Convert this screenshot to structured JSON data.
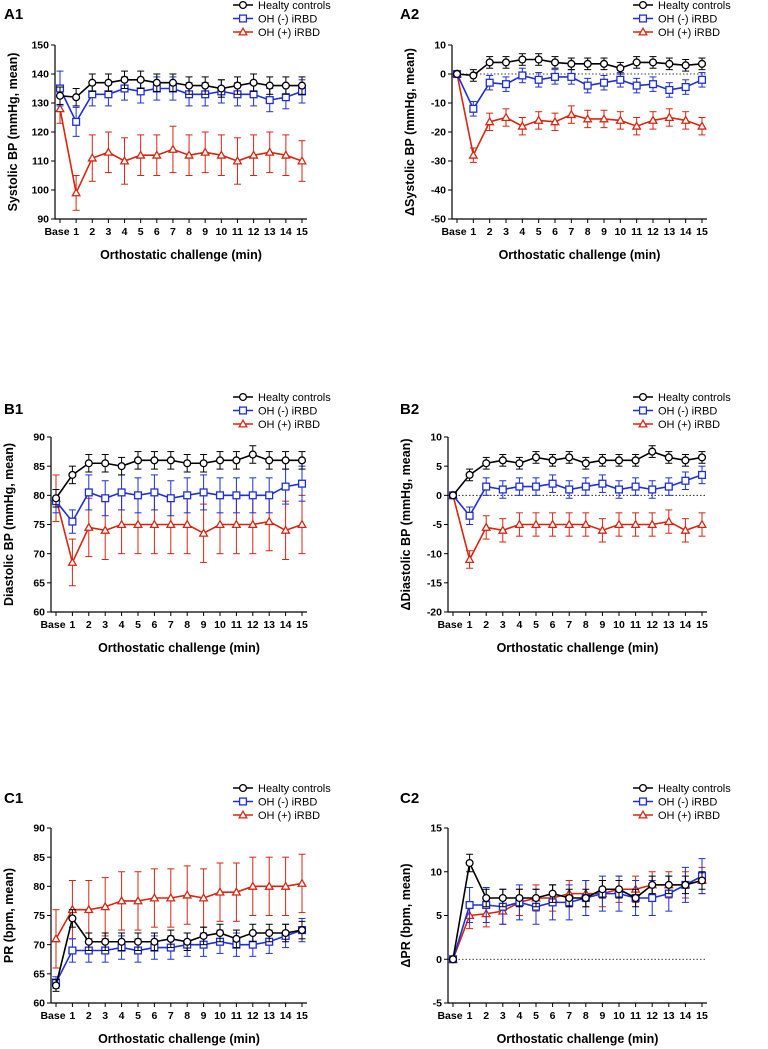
{
  "figure": {
    "legend_entries": [
      "Healty controls",
      "OH (-) iRBD",
      "OH (+) iRBD"
    ],
    "series_colors": [
      "#000000",
      "#1f2fd6",
      "#d62612"
    ],
    "marker_names": [
      "circle",
      "square",
      "triangle"
    ]
  },
  "chart_data": [
    {
      "id": "A1",
      "type": "line",
      "panel_label": "A1",
      "xlabel": "Orthostatic challenge (min)",
      "ylabel": "Systolic BP (mmHg, mean)",
      "categories": [
        "Base",
        "1",
        "2",
        "3",
        "4",
        "5",
        "6",
        "7",
        "8",
        "9",
        "10",
        "11",
        "12",
        "13",
        "14",
        "15"
      ],
      "ylim": [
        90,
        150
      ],
      "yticks": [
        90,
        100,
        110,
        120,
        130,
        140,
        150
      ],
      "zero_line": false,
      "legend_position": "top-right",
      "series": [
        {
          "name": "Healty controls",
          "values": [
            132.5,
            132,
            137,
            137,
            138,
            138,
            137,
            137,
            136,
            136,
            135,
            136,
            137,
            136,
            136,
            136
          ],
          "errors": [
            3,
            3,
            3,
            3,
            3,
            3,
            3,
            3,
            3,
            3,
            3,
            3,
            3,
            3,
            3,
            3
          ]
        },
        {
          "name": "OH (-) iRBD",
          "values": [
            135,
            123.5,
            133,
            133,
            135,
            134,
            135,
            135,
            133,
            133,
            134,
            133,
            133,
            131,
            132,
            134
          ],
          "errors": [
            6,
            5,
            4,
            4,
            4,
            4,
            4,
            4,
            4,
            4,
            4,
            4,
            4,
            4,
            4,
            4
          ]
        },
        {
          "name": "OH (+) iRBD",
          "values": [
            128,
            99,
            111,
            113,
            110,
            112,
            112,
            114,
            112,
            113,
            112,
            110,
            112,
            113,
            112,
            110
          ],
          "errors": [
            5,
            6,
            8,
            7,
            8,
            7,
            7,
            8,
            7,
            7,
            7,
            8,
            7,
            7,
            7,
            7
          ]
        }
      ]
    },
    {
      "id": "A2",
      "type": "line",
      "panel_label": "A2",
      "xlabel": "Orthostatic challenge (min)",
      "ylabel": "ΔSystolic BP (mmHg, mean)",
      "categories": [
        "Base",
        "1",
        "2",
        "3",
        "4",
        "5",
        "6",
        "7",
        "8",
        "9",
        "10",
        "11",
        "12",
        "13",
        "14",
        "15"
      ],
      "ylim": [
        -50,
        10
      ],
      "yticks": [
        -50,
        -40,
        -30,
        -20,
        -10,
        0,
        10
      ],
      "zero_line": true,
      "legend_position": "top-right",
      "series": [
        {
          "name": "Healty controls",
          "values": [
            0,
            -0.5,
            4,
            4,
            5,
            5,
            4,
            3.5,
            3.5,
            3.5,
            2,
            4,
            4,
            3.5,
            3,
            3.5
          ],
          "errors": [
            0,
            2,
            2,
            2,
            2,
            2,
            2,
            2,
            2,
            2,
            2,
            2,
            2,
            2,
            2,
            2
          ]
        },
        {
          "name": "OH (-) iRBD",
          "values": [
            0,
            -12,
            -3,
            -3.5,
            -0.5,
            -2,
            -1,
            -1,
            -4,
            -3,
            -2,
            -4,
            -3.5,
            -5.5,
            -4.5,
            -2
          ],
          "errors": [
            0,
            2.5,
            2.5,
            2.5,
            2.5,
            2.5,
            2.5,
            2.5,
            2.5,
            2.5,
            2.5,
            2.5,
            2.5,
            2.5,
            2.5,
            2.5
          ]
        },
        {
          "name": "OH (+) iRBD",
          "values": [
            0,
            -28,
            -16.5,
            -15,
            -18,
            -16,
            -16.5,
            -14,
            -15.5,
            -15.5,
            -16,
            -18,
            -16,
            -15,
            -16,
            -18
          ],
          "errors": [
            0,
            2.5,
            3,
            3,
            3,
            3,
            3,
            3,
            3,
            3,
            3,
            3,
            3,
            3,
            3,
            3
          ]
        }
      ]
    },
    {
      "id": "B1",
      "type": "line",
      "panel_label": "B1",
      "xlabel": "Orthostatic challenge (min)",
      "ylabel": "Diastolic BP (mmHg, mean)",
      "categories": [
        "Base",
        "1",
        "2",
        "3",
        "4",
        "5",
        "6",
        "7",
        "8",
        "9",
        "10",
        "11",
        "12",
        "13",
        "14",
        "15"
      ],
      "ylim": [
        60,
        90
      ],
      "yticks": [
        60,
        65,
        70,
        75,
        80,
        85,
        90
      ],
      "zero_line": false,
      "legend_position": "top-right",
      "series": [
        {
          "name": "Healty controls",
          "values": [
            79.5,
            83.5,
            85.5,
            85.5,
            85,
            86,
            86,
            86,
            85.5,
            85.5,
            86,
            86,
            87,
            86,
            86,
            86
          ],
          "errors": [
            1.5,
            1.5,
            1.5,
            1.5,
            1.5,
            1.5,
            1.5,
            1.5,
            1.5,
            1.5,
            1.5,
            1.5,
            1.5,
            1.5,
            1.5,
            1.5
          ]
        },
        {
          "name": "OH (-) iRBD",
          "values": [
            79,
            75.5,
            80.5,
            79.5,
            80.5,
            80,
            80.5,
            79.5,
            80,
            80.5,
            80,
            80,
            80,
            80,
            81.5,
            82
          ],
          "errors": [
            2,
            2,
            3,
            3,
            3,
            3,
            3,
            3,
            3,
            3,
            3,
            3,
            3,
            3,
            3,
            3
          ]
        },
        {
          "name": "OH (+) iRBD",
          "values": [
            79.5,
            68.5,
            74.5,
            74,
            75,
            75,
            75,
            75,
            75,
            73.5,
            75,
            75,
            75,
            75.5,
            74,
            75
          ],
          "errors": [
            4,
            4,
            5,
            5,
            5,
            5,
            5,
            5,
            5,
            5,
            5,
            5,
            5,
            5,
            5,
            5
          ]
        }
      ]
    },
    {
      "id": "B2",
      "type": "line",
      "panel_label": "B2",
      "xlabel": "Orthostatic challenge (min)",
      "ylabel": "ΔDiastolic BP (mmHg, mean)",
      "categories": [
        "Base",
        "1",
        "2",
        "3",
        "4",
        "5",
        "6",
        "7",
        "8",
        "9",
        "10",
        "11",
        "12",
        "13",
        "14",
        "15"
      ],
      "ylim": [
        -20,
        10
      ],
      "yticks": [
        -20,
        -15,
        -10,
        -5,
        0,
        5,
        10
      ],
      "zero_line": true,
      "legend_position": "top-right",
      "series": [
        {
          "name": "Healty controls",
          "values": [
            0,
            3.5,
            5.5,
            6,
            5.5,
            6.5,
            6,
            6.5,
            5.5,
            6,
            6,
            6,
            7.5,
            6.5,
            6,
            6.5
          ],
          "errors": [
            0,
            1,
            1,
            1,
            1,
            1,
            1,
            1,
            1,
            1,
            1,
            1,
            1,
            1,
            1,
            1
          ]
        },
        {
          "name": "OH (-) iRBD",
          "values": [
            0,
            -3.5,
            1.5,
            1,
            1.5,
            1.5,
            2,
            1,
            1.5,
            2,
            1,
            1.5,
            1,
            1.5,
            2.5,
            3.5
          ],
          "errors": [
            0,
            1.5,
            1.5,
            1.5,
            1.5,
            1.5,
            1.5,
            1.5,
            1.5,
            1.5,
            1.5,
            1.5,
            1.5,
            1.5,
            1.5,
            1.5
          ]
        },
        {
          "name": "OH (+) iRBD",
          "values": [
            0,
            -11,
            -5.5,
            -6,
            -5,
            -5,
            -5,
            -5,
            -5,
            -6,
            -5,
            -5,
            -5,
            -4.5,
            -6,
            -5
          ],
          "errors": [
            0,
            1.5,
            2,
            2,
            2,
            2,
            2,
            2,
            2,
            2,
            2,
            2,
            2,
            2,
            2,
            2
          ]
        }
      ]
    },
    {
      "id": "C1",
      "type": "line",
      "panel_label": "C1",
      "xlabel": "Orthostatic challenge (min)",
      "ylabel": "PR (bpm, mean)",
      "categories": [
        "Base",
        "1",
        "2",
        "3",
        "4",
        "5",
        "6",
        "7",
        "8",
        "9",
        "10",
        "11",
        "12",
        "13",
        "14",
        "15"
      ],
      "ylim": [
        60,
        90
      ],
      "yticks": [
        60,
        65,
        70,
        75,
        80,
        85,
        90
      ],
      "zero_line": false,
      "legend_position": "top-right",
      "series": [
        {
          "name": "Healty controls",
          "values": [
            63,
            74.5,
            70.5,
            70.5,
            70.5,
            70.5,
            70.5,
            71,
            70.5,
            71.5,
            72,
            71,
            72,
            72,
            72,
            72.5
          ],
          "errors": [
            1,
            1.5,
            1.5,
            1.5,
            1.5,
            1.5,
            1.5,
            1.5,
            1.5,
            1.5,
            1.5,
            1.5,
            1.5,
            1.5,
            1.5,
            1.5
          ]
        },
        {
          "name": "OH (-) iRBD",
          "values": [
            63.5,
            69,
            69,
            69,
            69.5,
            69,
            69.5,
            69.5,
            70,
            70,
            70.5,
            70,
            70,
            70.5,
            71.5,
            72.5
          ],
          "errors": [
            1,
            2,
            2,
            2,
            2,
            2,
            2,
            2,
            2,
            2,
            2,
            2,
            2,
            2,
            2,
            2
          ]
        },
        {
          "name": "OH (+) iRBD",
          "values": [
            71,
            76,
            76,
            76.5,
            77.5,
            77.5,
            78,
            78,
            78.5,
            78,
            79,
            79,
            80,
            80,
            80,
            80.5
          ],
          "errors": [
            5,
            5,
            5,
            5,
            5,
            5,
            5,
            5,
            5,
            5,
            5,
            5,
            5,
            5,
            5,
            5
          ]
        }
      ]
    },
    {
      "id": "C2",
      "type": "line",
      "panel_label": "C2",
      "xlabel": "Orthostatic challenge (min)",
      "ylabel": "ΔPR (bpm, mean)",
      "categories": [
        "Base",
        "1",
        "2",
        "3",
        "4",
        "5",
        "6",
        "7",
        "8",
        "9",
        "10",
        "11",
        "12",
        "13",
        "14",
        "15"
      ],
      "ylim": [
        -5,
        15
      ],
      "yticks": [
        -5,
        0,
        5,
        10,
        15
      ],
      "zero_line": true,
      "legend_position": "top-right",
      "series": [
        {
          "name": "Healty controls",
          "values": [
            0,
            11,
            7,
            7,
            7,
            7,
            7.5,
            7,
            7,
            8,
            8,
            7,
            8.5,
            8.5,
            8.5,
            9
          ],
          "errors": [
            0,
            1,
            1,
            1,
            1,
            1,
            1,
            1,
            1,
            1,
            1,
            1,
            1,
            1,
            1,
            1
          ]
        },
        {
          "name": "OH (-) iRBD",
          "values": [
            0,
            6.2,
            6.2,
            6,
            6.5,
            6,
            6.5,
            6.5,
            7,
            7.5,
            7.5,
            7,
            7,
            7.5,
            8.5,
            9.5
          ],
          "errors": [
            0,
            2,
            2,
            2,
            2,
            2,
            2,
            2,
            2,
            2,
            2,
            2,
            2,
            2,
            2,
            2
          ]
        },
        {
          "name": "OH (+) iRBD",
          "values": [
            0,
            5,
            5.2,
            5.5,
            6.5,
            7,
            7,
            7.5,
            7.5,
            7.5,
            8,
            8,
            8.5,
            8.5,
            8.5,
            9
          ],
          "errors": [
            0,
            1.5,
            1.5,
            1.5,
            1.5,
            1.5,
            1.5,
            1.5,
            1.5,
            1.5,
            1.5,
            1.5,
            1.5,
            1.5,
            1.5,
            1.5
          ]
        }
      ]
    }
  ]
}
